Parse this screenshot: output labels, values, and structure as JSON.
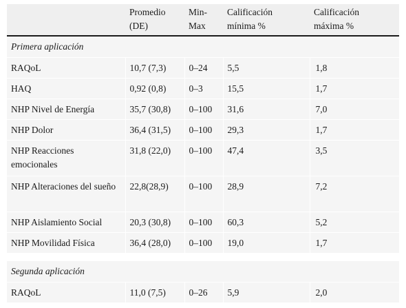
{
  "headers": [
    "",
    "Promedio (DE)",
    "Min-\nMax",
    "Calificación mínima %",
    "Calificación máxima %"
  ],
  "header_lines": {
    "promedio": [
      "Promedio",
      "(DE)"
    ],
    "minmax": [
      "Min-",
      "Max"
    ],
    "cal_min": [
      "Calificación",
      "mínima %"
    ],
    "cal_max": [
      "Calificación",
      "máxima %"
    ]
  },
  "sections": [
    {
      "title": "Primera aplicación",
      "rows": [
        {
          "label": "RAQoL",
          "promedio": "10,7 (7,3)",
          "minmax": "0–24",
          "cal_min": "5,5",
          "cal_max": "1,8"
        },
        {
          "label": "HAQ",
          "promedio": "0,92 (0,8)",
          "minmax": "0–3",
          "cal_min": "15,5",
          "cal_max": "1,7"
        },
        {
          "label": "NHP Nivel de Energía",
          "promedio": "35,7 (30,8)",
          "minmax": "0–100",
          "cal_min": "31,6",
          "cal_max": "7,0"
        },
        {
          "label": "NHP Dolor",
          "promedio": "36,4 (31,5)",
          "minmax": "0–100",
          "cal_min": "29,3",
          "cal_max": "1,7"
        },
        {
          "label": "NHP Reacciones emocionales",
          "promedio": "31,8 (22,0)",
          "minmax": "0–100",
          "cal_min": "47,4",
          "cal_max": "3,5"
        },
        {
          "label": "NHP Alteraciones del sueño",
          "promedio": "22,8(28,9)",
          "minmax": "0–100",
          "cal_min": "28,9",
          "cal_max": "7,2"
        },
        {
          "label": "NHP Aislamiento Social",
          "promedio": "20,3 (30,8)",
          "minmax": "0–100",
          "cal_min": "60,3",
          "cal_max": "5,2"
        },
        {
          "label": "NHP Movilidad Física",
          "promedio": "36,4 (28,0)",
          "minmax": "0–100",
          "cal_min": "19,0",
          "cal_max": "1,7"
        }
      ]
    },
    {
      "title": "Segunda aplicación",
      "rows": [
        {
          "label": "RAQoL",
          "promedio": "11,0 (7,5)",
          "minmax": "0–26",
          "cal_min": "5,9",
          "cal_max": "2,0"
        }
      ]
    }
  ]
}
